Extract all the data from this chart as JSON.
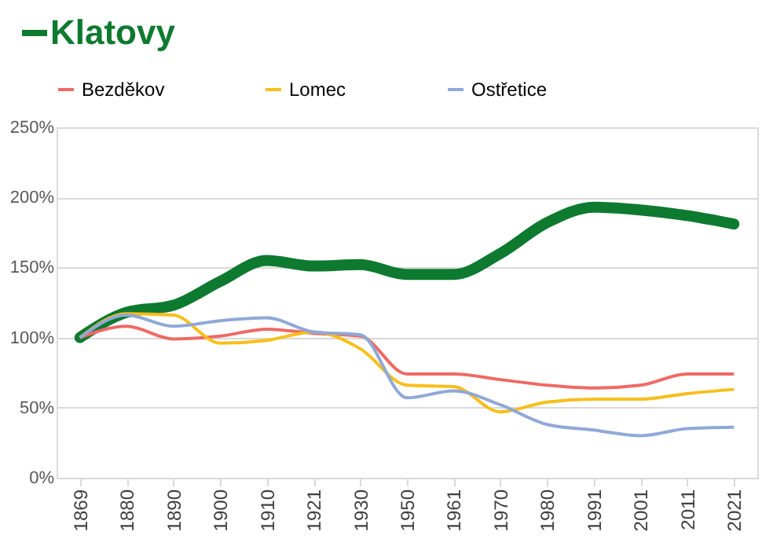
{
  "chart_data": {
    "type": "line",
    "categories": [
      "1869",
      "1880",
      "1890",
      "1900",
      "1910",
      "1921",
      "1930",
      "1950",
      "1961",
      "1970",
      "1980",
      "1991",
      "2001",
      "2011",
      "2021"
    ],
    "series": [
      {
        "name": "Klatovy",
        "color": "#0e7a2f",
        "values": [
          100,
          118,
          123,
          140,
          155,
          151,
          152,
          145,
          145,
          160,
          182,
          193,
          191,
          187,
          181
        ]
      },
      {
        "name": "Bezděkov",
        "color": "#ee6a64",
        "values": [
          100,
          108,
          99,
          101,
          106,
          103,
          101,
          74,
          74,
          70,
          66,
          64,
          66,
          74,
          74
        ]
      },
      {
        "name": "Lomec",
        "color": "#f8be1a",
        "values": [
          100,
          117,
          116,
          96,
          98,
          104,
          92,
          66,
          65,
          47,
          54,
          56,
          56,
          60,
          63
        ]
      },
      {
        "name": "Ostřetice",
        "color": "#8fa8d8",
        "values": [
          100,
          116,
          108,
          112,
          114,
          104,
          102,
          57,
          62,
          52,
          38,
          34,
          30,
          35,
          36
        ]
      }
    ],
    "ylim": [
      0,
      250
    ],
    "yticks": [
      {
        "value": 0,
        "label": "0%"
      },
      {
        "value": 50,
        "label": "50%"
      },
      {
        "value": 100,
        "label": "100%"
      },
      {
        "value": 150,
        "label": "150%"
      },
      {
        "value": 200,
        "label": "200%"
      },
      {
        "value": 250,
        "label": "250%"
      }
    ],
    "grid": "y",
    "legend": "top",
    "line_style": "solid",
    "marker": "none"
  }
}
